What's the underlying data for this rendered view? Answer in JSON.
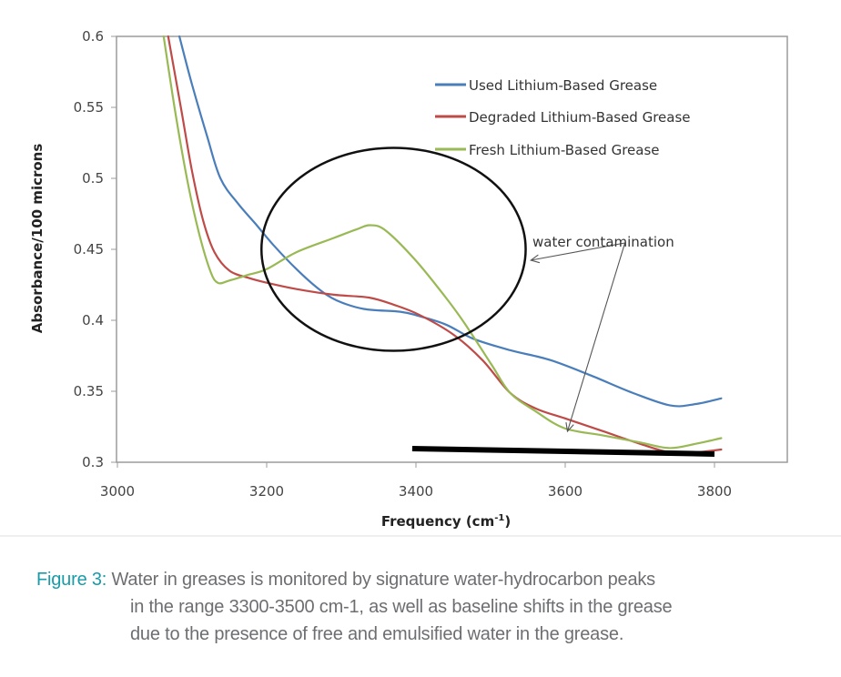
{
  "chart_data": {
    "type": "line",
    "title": "",
    "xlabel": "Frequency (cm",
    "xlabel_sup": "-1",
    "xlabel_end": ")",
    "ylabel": "Absorbance/100 microns",
    "xlim": [
      3000,
      3800
    ],
    "ylim": [
      0.3,
      0.6
    ],
    "xticks": [
      3000,
      3200,
      3400,
      3600,
      3800
    ],
    "xtick_labels": [
      "3000",
      "3200",
      "3400",
      "3600",
      "3800"
    ],
    "yticks": [
      0.3,
      0.35,
      0.4,
      0.45,
      0.5,
      0.55,
      0.6
    ],
    "ytick_labels": [
      "0.3",
      "0.35",
      "0.4",
      "0.45",
      "0.5",
      "0.55",
      "0.6"
    ],
    "grid": false,
    "legend_position": "top-right",
    "series": [
      {
        "name": "Used Lithium-Based Grease",
        "color": "#4a7ebb",
        "x": [
          3083,
          3100,
          3120,
          3138,
          3162,
          3185,
          3209,
          3240,
          3270,
          3294,
          3330,
          3379,
          3404,
          3440,
          3477,
          3526,
          3580,
          3635,
          3690,
          3741,
          3775,
          3809
        ],
        "y": [
          0.6,
          0.566,
          0.53,
          0.5,
          0.482,
          0.468,
          0.453,
          0.436,
          0.422,
          0.414,
          0.408,
          0.406,
          0.403,
          0.397,
          0.387,
          0.379,
          0.372,
          0.361,
          0.349,
          0.34,
          0.341,
          0.345
        ]
      },
      {
        "name": "Degraded Lithium-Based Grease",
        "color": "#be4b48",
        "x": [
          3068,
          3085,
          3100,
          3115,
          3130,
          3150,
          3175,
          3196,
          3240,
          3290,
          3337,
          3370,
          3404,
          3450,
          3489,
          3526,
          3560,
          3599,
          3650,
          3700,
          3740,
          3775,
          3809
        ],
        "y": [
          0.6,
          0.55,
          0.505,
          0.47,
          0.448,
          0.435,
          0.43,
          0.427,
          0.422,
          0.418,
          0.416,
          0.411,
          0.404,
          0.39,
          0.372,
          0.349,
          0.338,
          0.331,
          0.322,
          0.313,
          0.307,
          0.307,
          0.309
        ]
      },
      {
        "name": "Fresh Lithium-Based Grease",
        "color": "#98b954",
        "x": [
          3062,
          3078,
          3095,
          3110,
          3125,
          3135,
          3150,
          3175,
          3200,
          3240,
          3290,
          3320,
          3339,
          3360,
          3400,
          3440,
          3465,
          3501,
          3526,
          3560,
          3599,
          3650,
          3700,
          3739,
          3775,
          3809
        ],
        "y": [
          0.6,
          0.545,
          0.495,
          0.46,
          0.434,
          0.4263,
          0.428,
          0.432,
          0.436,
          0.448,
          0.458,
          0.464,
          0.467,
          0.463,
          0.442,
          0.416,
          0.398,
          0.369,
          0.349,
          0.336,
          0.324,
          0.319,
          0.314,
          0.31,
          0.313,
          0.317
        ]
      }
    ],
    "annotations": {
      "text": "water contamination",
      "ellipse_center": [
        3370,
        0.45
      ],
      "ellipse_radius_x_units": 177,
      "ellipse_radius_y_units": 0.0715,
      "arrow_origin": [
        3680,
        0.4545
      ],
      "arrow_targets": [
        [
          3554,
          0.4423
        ],
        [
          3603,
          0.3218
        ]
      ],
      "baseline_segment": [
        [
          3395,
          0.3096
        ],
        [
          3800,
          0.3058
        ]
      ]
    }
  },
  "caption": {
    "label": "Figure 3:",
    "line1": " Water in greases is monitored by signature water-hydrocarbon peaks",
    "line2": "in the range 3300-3500 cm-1, as well as baseline shifts in the grease",
    "line3": "due to the presence of free and emulsified water in the grease."
  }
}
